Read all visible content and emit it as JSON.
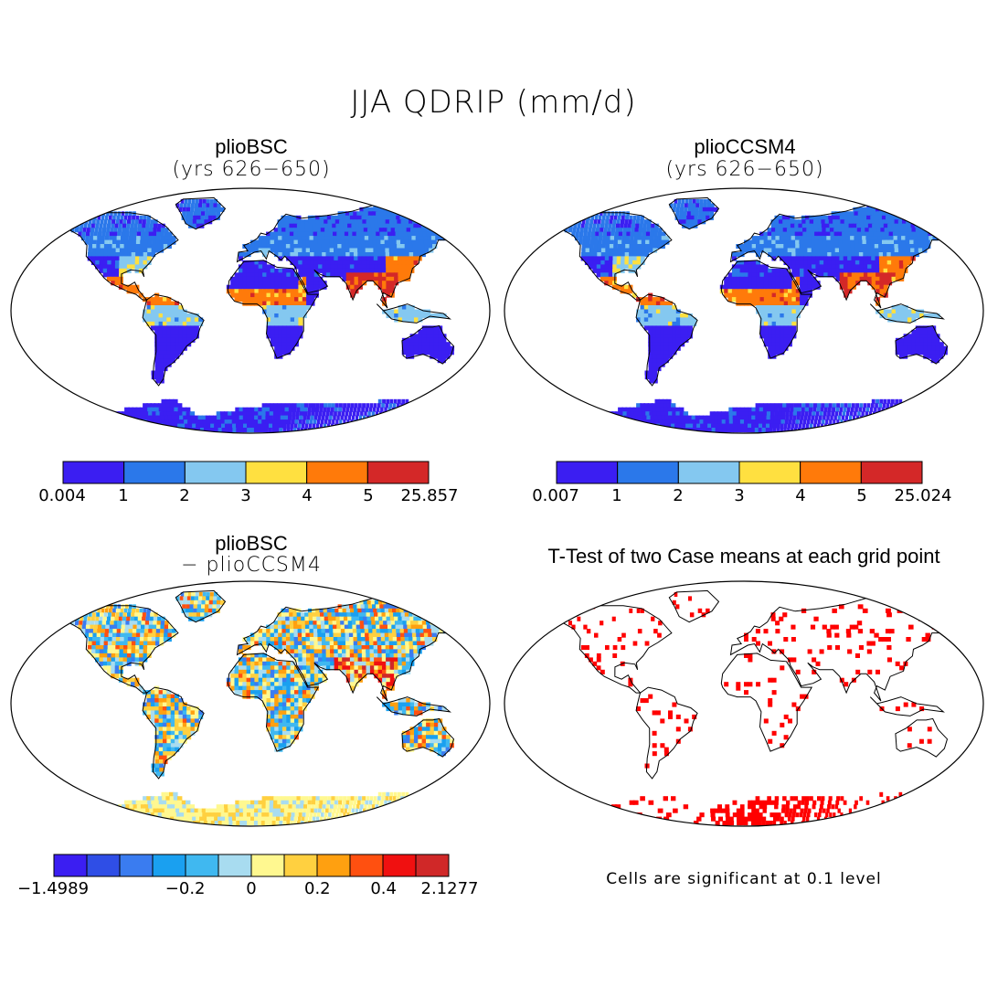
{
  "figure": {
    "title": "JJA QDRIP (mm/d)"
  },
  "panels": [
    {
      "id": "pliobsc",
      "title": "plioBSC",
      "subtitle": "(yrs 626−650)",
      "colorbar": {
        "labels": [
          "0.004",
          "1",
          "2",
          "3",
          "4",
          "5",
          "25.857"
        ],
        "colors": [
          "#3b1ef2",
          "#2b78ea",
          "#84c8f0",
          "#ffe040",
          "#ff7a0a",
          "#d42828"
        ]
      }
    },
    {
      "id": "plioccsm4",
      "title": "plioCCSM4",
      "subtitle": "(yrs 626−650)",
      "colorbar": {
        "labels": [
          "0.007",
          "1",
          "2",
          "3",
          "4",
          "5",
          "25.024"
        ],
        "colors": [
          "#3b1ef2",
          "#2b78ea",
          "#84c8f0",
          "#ffe040",
          "#ff7a0a",
          "#d42828"
        ]
      }
    },
    {
      "id": "difference",
      "title": "plioBSC",
      "subtitle": "− plioCCSM4",
      "colorbar": {
        "labels": [
          "−1.4989",
          "−0.2",
          "0",
          "0.2",
          "0.4",
          "2.1277"
        ],
        "colors": [
          "#3b1ef2",
          "#2f4ee6",
          "#3a7cf0",
          "#1aa0f0",
          "#40b8f0",
          "#a8dcf0",
          "#fff890",
          "#ffd040",
          "#ffa010",
          "#ff5010",
          "#f01010",
          "#d02828"
        ]
      }
    },
    {
      "id": "ttest",
      "title": "T-Test of two Case means at each grid point",
      "note": "Cells are significant at 0.1 level",
      "highlight_color": "#ff0000"
    }
  ]
}
